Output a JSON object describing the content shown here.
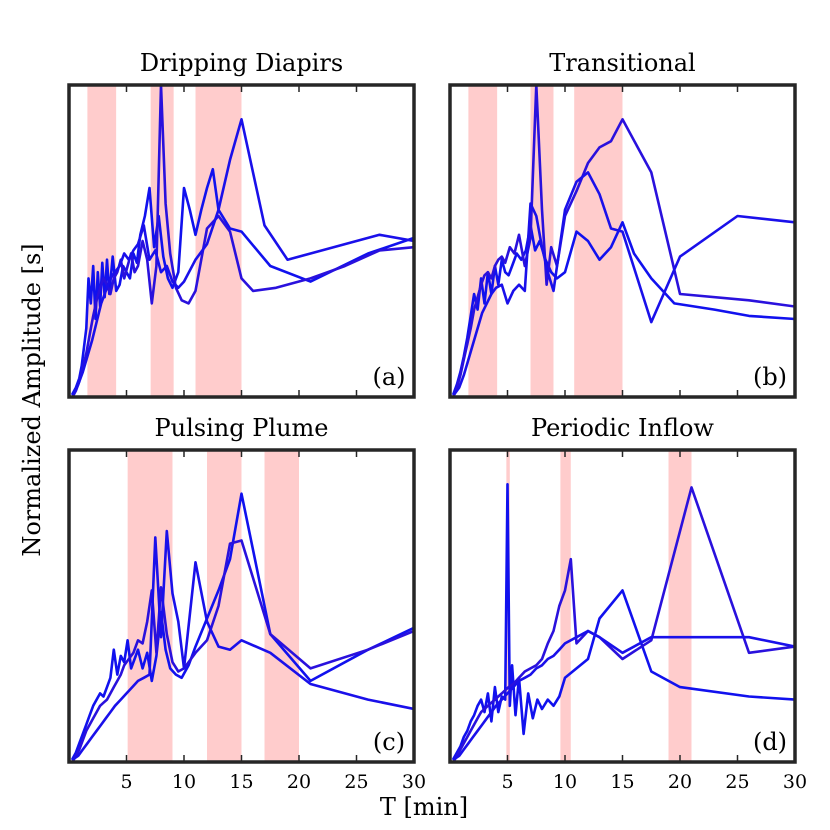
{
  "figure": {
    "ylabel": "Normalized Amplitude [s]",
    "xlabel": "T [min]"
  },
  "chart_data": [
    {
      "type": "line",
      "title": "Dripping Diapirs",
      "panel_label": "(a)",
      "xlim": [
        0,
        30
      ],
      "ylim": [
        0,
        1
      ],
      "xticks": [
        5,
        10,
        15,
        20,
        25,
        30
      ],
      "show_tick_labels": false,
      "bands": [
        [
          1.6,
          4.1
        ],
        [
          7.1,
          9.1
        ],
        [
          11.0,
          15.0
        ]
      ],
      "series": [
        {
          "name": "series-1",
          "color": "#1111ee",
          "x": [
            0.3,
            0.6,
            0.9,
            1.1,
            1.3,
            1.5,
            1.7,
            1.9,
            2.1,
            2.3,
            2.5,
            2.7,
            2.9,
            3.1,
            3.3,
            3.5,
            3.8,
            4.1,
            4.4,
            4.7,
            5.0,
            5.3,
            5.6,
            5.9,
            6.2,
            6.6,
            7.0,
            7.4,
            7.8,
            8.2,
            8.6,
            9.0,
            9.5,
            10.0,
            10.5,
            11.0,
            11.5,
            12.0,
            12.5,
            13.0,
            14.0,
            15.0,
            17.5,
            21.0,
            26.0,
            30.0
          ],
          "y": [
            0.01,
            0.03,
            0.06,
            0.1,
            0.16,
            0.22,
            0.38,
            0.3,
            0.42,
            0.25,
            0.4,
            0.29,
            0.43,
            0.32,
            0.44,
            0.33,
            0.45,
            0.34,
            0.36,
            0.42,
            0.4,
            0.38,
            0.46,
            0.43,
            0.52,
            0.58,
            0.67,
            0.48,
            0.58,
            0.45,
            0.38,
            0.35,
            0.4,
            0.67,
            0.6,
            0.52,
            0.6,
            0.67,
            0.73,
            0.6,
            0.54,
            0.53,
            0.42,
            0.37,
            0.46,
            0.51
          ]
        },
        {
          "name": "series-2",
          "color": "#2a11dd",
          "x": [
            0.3,
            0.6,
            0.9,
            1.2,
            1.5,
            1.8,
            2.1,
            2.4,
            2.7,
            3.0,
            3.3,
            3.6,
            3.9,
            4.2,
            4.5,
            4.8,
            5.1,
            5.4,
            5.7,
            6.0,
            6.4,
            6.8,
            7.2,
            7.6,
            8.0,
            8.4,
            8.8,
            9.3,
            9.8,
            10.4,
            11.0,
            12.0,
            13.0,
            14.0,
            15.0,
            16.0,
            18.0,
            21.0,
            24.0,
            27.0,
            30.0
          ],
          "y": [
            0.0,
            0.02,
            0.05,
            0.09,
            0.14,
            0.2,
            0.26,
            0.31,
            0.35,
            0.38,
            0.36,
            0.33,
            0.38,
            0.4,
            0.44,
            0.38,
            0.42,
            0.46,
            0.4,
            0.42,
            0.5,
            0.44,
            0.3,
            0.42,
            1.0,
            0.62,
            0.46,
            0.35,
            0.31,
            0.3,
            0.34,
            0.54,
            0.58,
            0.53,
            0.38,
            0.34,
            0.35,
            0.38,
            0.42,
            0.47,
            0.48
          ]
        },
        {
          "name": "series-3",
          "color": "#1a10ea",
          "x": [
            0.4,
            0.8,
            1.2,
            1.6,
            2.0,
            2.4,
            2.8,
            3.2,
            3.6,
            4.0,
            4.4,
            4.8,
            5.2,
            5.6,
            6.0,
            6.5,
            7.0,
            7.5,
            8.0,
            8.5,
            9.0,
            9.5,
            10.0,
            11.0,
            12.0,
            13.0,
            14.0,
            15.0,
            17.0,
            19.0,
            21.0,
            24.0,
            27.0,
            30.0
          ],
          "y": [
            0.01,
            0.04,
            0.08,
            0.13,
            0.18,
            0.24,
            0.3,
            0.34,
            0.38,
            0.4,
            0.42,
            0.46,
            0.44,
            0.47,
            0.49,
            0.55,
            0.44,
            0.47,
            0.4,
            0.42,
            0.37,
            0.35,
            0.37,
            0.44,
            0.49,
            0.6,
            0.76,
            0.89,
            0.55,
            0.44,
            0.46,
            0.49,
            0.52,
            0.5
          ]
        }
      ]
    },
    {
      "type": "line",
      "title": "Transitional",
      "panel_label": "(b)",
      "xlim": [
        0,
        30
      ],
      "ylim": [
        0,
        1
      ],
      "xticks": [
        5,
        10,
        15,
        20,
        25,
        30
      ],
      "show_tick_labels": false,
      "bands": [
        [
          1.6,
          4.1
        ],
        [
          7.0,
          9.0
        ],
        [
          10.8,
          15.0
        ]
      ],
      "series": [
        {
          "name": "series-1",
          "color": "#1111ee",
          "x": [
            0.3,
            0.6,
            0.9,
            1.2,
            1.5,
            1.8,
            2.1,
            2.4,
            2.7,
            3.0,
            3.3,
            3.6,
            3.9,
            4.2,
            4.5,
            4.8,
            5.1,
            5.4,
            5.8,
            6.2,
            6.6,
            7.0,
            7.4,
            7.8,
            8.3,
            8.8,
            9.3,
            10.0,
            11.0,
            12.0,
            13.0,
            14.0,
            15.0,
            16.0,
            17.5,
            19.5,
            23.0,
            26.0,
            30.0
          ],
          "y": [
            0.01,
            0.04,
            0.08,
            0.13,
            0.19,
            0.26,
            0.33,
            0.28,
            0.38,
            0.3,
            0.4,
            0.33,
            0.42,
            0.36,
            0.44,
            0.4,
            0.39,
            0.42,
            0.46,
            0.44,
            0.47,
            0.55,
            0.47,
            0.5,
            0.44,
            0.4,
            0.38,
            0.4,
            0.53,
            0.5,
            0.44,
            0.48,
            0.56,
            0.46,
            0.38,
            0.3,
            0.28,
            0.26,
            0.25
          ]
        },
        {
          "name": "series-2",
          "color": "#2a11dd",
          "x": [
            0.3,
            0.6,
            0.9,
            1.2,
            1.5,
            1.8,
            2.1,
            2.4,
            2.7,
            3.0,
            3.3,
            3.6,
            3.9,
            4.2,
            4.5,
            4.8,
            5.2,
            5.6,
            6.0,
            6.5,
            7.0,
            7.5,
            8.0,
            8.4,
            8.8,
            9.3,
            10.0,
            11.0,
            12.0,
            13.0,
            14.0,
            15.0,
            17.5,
            20.0,
            26.0,
            30.0
          ],
          "y": [
            0.0,
            0.03,
            0.07,
            0.12,
            0.17,
            0.22,
            0.28,
            0.32,
            0.36,
            0.39,
            0.4,
            0.38,
            0.42,
            0.44,
            0.45,
            0.43,
            0.48,
            0.46,
            0.52,
            0.42,
            0.51,
            1.0,
            0.6,
            0.36,
            0.48,
            0.42,
            0.58,
            0.66,
            0.75,
            0.8,
            0.82,
            0.89,
            0.72,
            0.33,
            0.31,
            0.29
          ]
        },
        {
          "name": "series-3",
          "color": "#1a10ea",
          "x": [
            0.4,
            0.8,
            1.2,
            1.6,
            2.0,
            2.4,
            2.8,
            3.2,
            3.6,
            4.0,
            4.5,
            5.0,
            5.5,
            6.0,
            6.5,
            7.0,
            7.5,
            8.0,
            8.5,
            9.0,
            10.0,
            11.0,
            12.0,
            13.0,
            14.0,
            15.0,
            17.5,
            20.0,
            25.0,
            30.0
          ],
          "y": [
            0.01,
            0.03,
            0.07,
            0.12,
            0.17,
            0.22,
            0.27,
            0.3,
            0.33,
            0.35,
            0.36,
            0.3,
            0.34,
            0.36,
            0.34,
            0.62,
            0.58,
            0.48,
            0.4,
            0.34,
            0.6,
            0.69,
            0.72,
            0.65,
            0.54,
            0.53,
            0.24,
            0.45,
            0.58,
            0.56
          ]
        }
      ]
    },
    {
      "type": "line",
      "title": "Pulsing Plume",
      "panel_label": "(c)",
      "xlim": [
        0,
        30
      ],
      "ylim": [
        0,
        1
      ],
      "xticks": [
        5,
        10,
        15,
        20,
        25,
        30
      ],
      "show_tick_labels": true,
      "bands": [
        [
          5.1,
          9.0
        ],
        [
          12.0,
          15.0
        ],
        [
          17.0,
          20.0
        ]
      ],
      "series": [
        {
          "name": "series-1",
          "color": "#1111ee",
          "x": [
            0.3,
            0.6,
            0.9,
            1.2,
            1.5,
            1.8,
            2.1,
            2.4,
            2.7,
            3.0,
            3.3,
            3.6,
            3.9,
            4.2,
            4.5,
            4.8,
            5.1,
            5.4,
            5.7,
            6.0,
            6.4,
            6.8,
            7.2,
            7.6,
            8.0,
            8.4,
            8.8,
            9.3,
            9.8,
            10.4,
            11.0,
            12.0,
            13.0,
            14.0,
            15.0,
            17.5,
            21.0,
            26.0,
            30.0
          ],
          "y": [
            0.01,
            0.03,
            0.06,
            0.09,
            0.12,
            0.15,
            0.18,
            0.2,
            0.22,
            0.21,
            0.24,
            0.27,
            0.36,
            0.28,
            0.34,
            0.32,
            0.39,
            0.3,
            0.33,
            0.36,
            0.3,
            0.35,
            0.26,
            0.34,
            0.48,
            0.36,
            0.3,
            0.28,
            0.27,
            0.31,
            0.37,
            0.46,
            0.55,
            0.65,
            0.86,
            0.41,
            0.26,
            0.36,
            0.43
          ]
        },
        {
          "name": "series-2",
          "color": "#2a11dd",
          "x": [
            0.3,
            0.6,
            0.9,
            1.2,
            1.5,
            1.8,
            2.1,
            2.4,
            2.7,
            3.0,
            3.3,
            3.6,
            3.9,
            4.2,
            4.5,
            4.8,
            5.2,
            5.6,
            6.0,
            6.4,
            6.8,
            7.2,
            7.6,
            8.0,
            8.5,
            9.0,
            9.5,
            10.0,
            11.0,
            12.0,
            13.0,
            14.0,
            15.0,
            17.5,
            21.0,
            26.0,
            30.0
          ],
          "y": [
            0.0,
            0.02,
            0.04,
            0.07,
            0.1,
            0.12,
            0.14,
            0.16,
            0.18,
            0.19,
            0.2,
            0.22,
            0.24,
            0.26,
            0.28,
            0.31,
            0.33,
            0.35,
            0.39,
            0.38,
            0.45,
            0.55,
            0.35,
            0.56,
            0.41,
            0.32,
            0.29,
            0.3,
            0.35,
            0.39,
            0.5,
            0.7,
            0.71,
            0.41,
            0.3,
            0.36,
            0.42
          ]
        },
        {
          "name": "series-3",
          "color": "#1a10ea",
          "x": [
            0.4,
            0.8,
            1.2,
            1.6,
            2.0,
            2.4,
            2.8,
            3.2,
            3.6,
            4.0,
            4.5,
            5.0,
            5.5,
            6.0,
            6.5,
            7.0,
            7.5,
            8.0,
            8.5,
            9.0,
            9.5,
            10.0,
            11.0,
            12.0,
            13.0,
            14.0,
            15.0,
            17.5,
            21.0,
            26.0,
            30.0
          ],
          "y": [
            0.01,
            0.02,
            0.04,
            0.06,
            0.08,
            0.1,
            0.12,
            0.14,
            0.16,
            0.18,
            0.2,
            0.22,
            0.24,
            0.26,
            0.27,
            0.28,
            0.72,
            0.4,
            0.74,
            0.54,
            0.45,
            0.3,
            0.64,
            0.45,
            0.37,
            0.36,
            0.39,
            0.35,
            0.25,
            0.2,
            0.17
          ]
        }
      ]
    },
    {
      "type": "line",
      "title": "Periodic Inflow",
      "panel_label": "(d)",
      "xlim": [
        0,
        30
      ],
      "ylim": [
        0,
        1
      ],
      "xticks": [
        5,
        10,
        15,
        20,
        25,
        30
      ],
      "show_tick_labels": true,
      "bands": [
        [
          4.9,
          5.2
        ],
        [
          9.6,
          10.5
        ],
        [
          19.0,
          21.0
        ]
      ],
      "series": [
        {
          "name": "series-1",
          "color": "#1111ee",
          "x": [
            0.3,
            0.6,
            0.9,
            1.2,
            1.5,
            1.8,
            2.1,
            2.4,
            2.7,
            3.0,
            3.3,
            3.6,
            3.9,
            4.2,
            4.5,
            4.8,
            5.0,
            5.2,
            5.4,
            5.7,
            6.0,
            6.4,
            6.8,
            7.2,
            7.6,
            8.0,
            8.5,
            9.0,
            9.5,
            10.0,
            11.0,
            12.0,
            13.0,
            15.0,
            17.5,
            20.0,
            26.0,
            30.0
          ],
          "y": [
            0.01,
            0.03,
            0.05,
            0.08,
            0.1,
            0.13,
            0.15,
            0.18,
            0.2,
            0.16,
            0.22,
            0.13,
            0.24,
            0.16,
            0.21,
            0.2,
            0.89,
            0.18,
            0.31,
            0.15,
            0.27,
            0.09,
            0.22,
            0.14,
            0.2,
            0.17,
            0.2,
            0.18,
            0.21,
            0.27,
            0.3,
            0.33,
            0.46,
            0.55,
            0.29,
            0.24,
            0.21,
            0.2
          ]
        },
        {
          "name": "series-2",
          "color": "#2a11dd",
          "x": [
            0.3,
            0.6,
            0.9,
            1.2,
            1.5,
            1.8,
            2.1,
            2.4,
            2.7,
            3.0,
            3.3,
            3.6,
            3.9,
            4.2,
            4.5,
            4.8,
            5.1,
            5.5,
            6.0,
            6.5,
            7.0,
            7.5,
            8.0,
            8.5,
            9.0,
            9.5,
            10.0,
            10.5,
            11.0,
            12.0,
            13.0,
            15.0,
            17.5,
            21.0,
            26.0,
            30.0
          ],
          "y": [
            0.0,
            0.02,
            0.04,
            0.06,
            0.08,
            0.1,
            0.12,
            0.14,
            0.16,
            0.17,
            0.18,
            0.19,
            0.2,
            0.21,
            0.22,
            0.23,
            0.24,
            0.25,
            0.27,
            0.29,
            0.3,
            0.31,
            0.33,
            0.38,
            0.42,
            0.5,
            0.55,
            0.65,
            0.38,
            0.42,
            0.4,
            0.33,
            0.39,
            0.88,
            0.35,
            0.37
          ]
        },
        {
          "name": "series-3",
          "color": "#1a10ea",
          "x": [
            0.4,
            0.8,
            1.2,
            1.6,
            2.0,
            2.4,
            2.8,
            3.2,
            3.6,
            4.0,
            4.5,
            5.0,
            5.5,
            6.0,
            6.5,
            7.0,
            7.5,
            8.0,
            8.5,
            9.0,
            9.5,
            10.0,
            11.0,
            12.0,
            13.0,
            15.0,
            17.5,
            21.0,
            26.0,
            30.0
          ],
          "y": [
            0.01,
            0.02,
            0.04,
            0.06,
            0.08,
            0.1,
            0.12,
            0.14,
            0.16,
            0.18,
            0.2,
            0.22,
            0.24,
            0.26,
            0.27,
            0.28,
            0.3,
            0.31,
            0.33,
            0.34,
            0.36,
            0.38,
            0.4,
            0.42,
            0.4,
            0.35,
            0.4,
            0.4,
            0.4,
            0.37
          ]
        }
      ]
    }
  ]
}
